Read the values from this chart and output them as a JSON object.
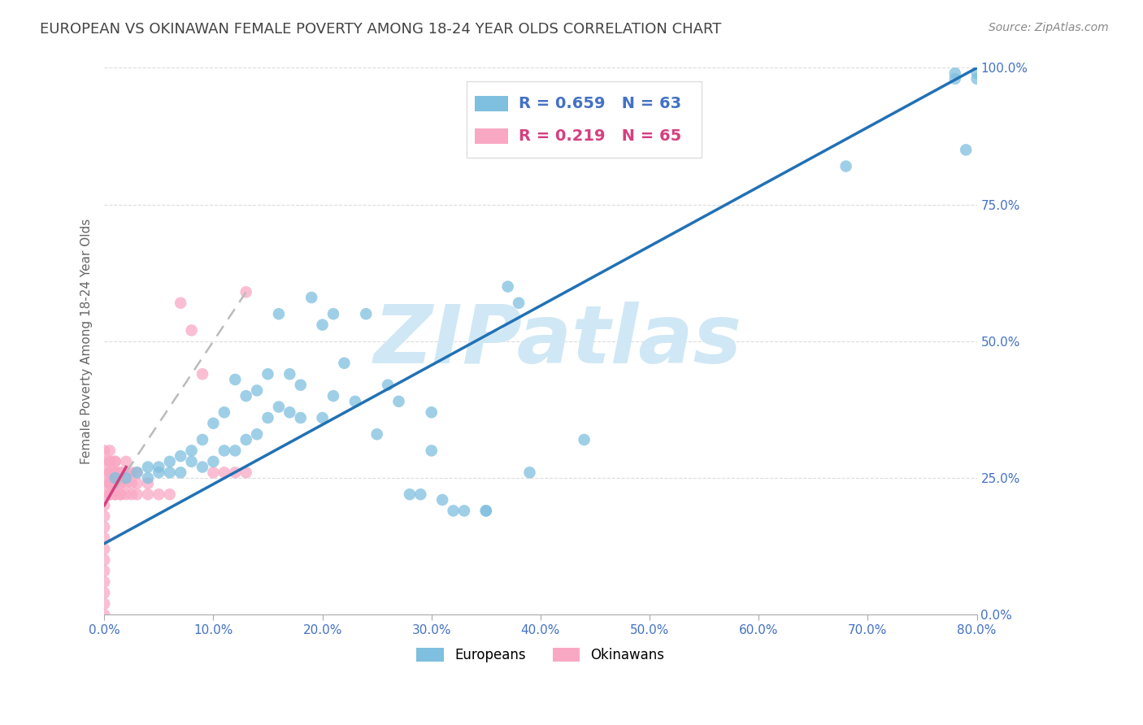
{
  "title": "EUROPEAN VS OKINAWAN FEMALE POVERTY AMONG 18-24 YEAR OLDS CORRELATION CHART",
  "source": "Source: ZipAtlas.com",
  "ylabel": "Female Poverty Among 18-24 Year Olds",
  "xlim": [
    0.0,
    0.8
  ],
  "ylim": [
    0.0,
    1.0
  ],
  "xticks": [
    0.0,
    0.1,
    0.2,
    0.3,
    0.4,
    0.5,
    0.6,
    0.7,
    0.8
  ],
  "yticks": [
    0.0,
    0.25,
    0.5,
    0.75,
    1.0
  ],
  "xticklabels": [
    "0.0%",
    "10.0%",
    "20.0%",
    "30.0%",
    "40.0%",
    "50.0%",
    "60.0%",
    "70.0%",
    "80.0%"
  ],
  "yticklabels": [
    "0.0%",
    "25.0%",
    "50.0%",
    "75.0%",
    "100.0%"
  ],
  "european_R": 0.659,
  "european_N": 63,
  "okinawan_R": 0.219,
  "okinawan_N": 65,
  "european_color": "#7fbfdf",
  "european_line_color": "#2171b5",
  "okinawan_color": "#f9a8c4",
  "okinawan_line_color": "#d44080",
  "watermark": "ZIPatlas",
  "watermark_color": "#d0e8f5",
  "background_color": "#ffffff",
  "title_color": "#444444",
  "axis_color": "#4472c4",
  "grid_color": "#cccccc",
  "eu_line_x0": 0.0,
  "eu_line_x1": 0.8,
  "eu_line_y0": 0.13,
  "eu_line_y1": 1.0,
  "ok_line_x0": 0.0,
  "ok_line_x1": 0.13,
  "ok_line_y0": 0.2,
  "ok_line_y1": 0.59,
  "european_x": [
    0.01,
    0.02,
    0.03,
    0.04,
    0.04,
    0.05,
    0.05,
    0.06,
    0.06,
    0.07,
    0.07,
    0.08,
    0.08,
    0.09,
    0.09,
    0.1,
    0.1,
    0.11,
    0.11,
    0.12,
    0.12,
    0.13,
    0.13,
    0.14,
    0.14,
    0.15,
    0.15,
    0.16,
    0.16,
    0.17,
    0.17,
    0.18,
    0.18,
    0.19,
    0.2,
    0.2,
    0.21,
    0.21,
    0.22,
    0.23,
    0.24,
    0.25,
    0.26,
    0.27,
    0.28,
    0.29,
    0.3,
    0.3,
    0.31,
    0.32,
    0.33,
    0.35,
    0.35,
    0.37,
    0.38,
    0.39,
    0.44,
    0.68,
    0.78,
    0.78,
    0.79,
    0.8,
    0.8
  ],
  "european_y": [
    0.25,
    0.25,
    0.26,
    0.25,
    0.27,
    0.26,
    0.27,
    0.26,
    0.28,
    0.26,
    0.29,
    0.28,
    0.3,
    0.27,
    0.32,
    0.28,
    0.35,
    0.3,
    0.37,
    0.3,
    0.43,
    0.32,
    0.4,
    0.33,
    0.41,
    0.36,
    0.44,
    0.38,
    0.55,
    0.37,
    0.44,
    0.36,
    0.42,
    0.58,
    0.36,
    0.53,
    0.4,
    0.55,
    0.46,
    0.39,
    0.55,
    0.33,
    0.42,
    0.39,
    0.22,
    0.22,
    0.3,
    0.37,
    0.21,
    0.19,
    0.19,
    0.19,
    0.19,
    0.6,
    0.57,
    0.26,
    0.32,
    0.82,
    0.98,
    0.99,
    0.85,
    0.98,
    0.99
  ],
  "okinawan_x": [
    0.0,
    0.0,
    0.0,
    0.0,
    0.0,
    0.0,
    0.0,
    0.0,
    0.0,
    0.0,
    0.0,
    0.0,
    0.0,
    0.0,
    0.0,
    0.0,
    0.005,
    0.005,
    0.005,
    0.005,
    0.005,
    0.005,
    0.005,
    0.005,
    0.005,
    0.005,
    0.005,
    0.01,
    0.01,
    0.01,
    0.01,
    0.01,
    0.01,
    0.01,
    0.01,
    0.01,
    0.01,
    0.015,
    0.015,
    0.015,
    0.015,
    0.015,
    0.015,
    0.02,
    0.02,
    0.02,
    0.02,
    0.025,
    0.025,
    0.025,
    0.03,
    0.03,
    0.03,
    0.04,
    0.04,
    0.05,
    0.06,
    0.07,
    0.08,
    0.09,
    0.1,
    0.11,
    0.12,
    0.13,
    0.13
  ],
  "okinawan_y": [
    0.0,
    0.02,
    0.04,
    0.06,
    0.08,
    0.1,
    0.12,
    0.14,
    0.16,
    0.18,
    0.2,
    0.22,
    0.24,
    0.26,
    0.28,
    0.3,
    0.22,
    0.24,
    0.26,
    0.28,
    0.3,
    0.22,
    0.24,
    0.26,
    0.28,
    0.22,
    0.24,
    0.22,
    0.24,
    0.26,
    0.28,
    0.24,
    0.26,
    0.22,
    0.24,
    0.26,
    0.28,
    0.22,
    0.24,
    0.26,
    0.22,
    0.24,
    0.26,
    0.22,
    0.24,
    0.26,
    0.28,
    0.22,
    0.24,
    0.26,
    0.22,
    0.24,
    0.26,
    0.22,
    0.24,
    0.22,
    0.22,
    0.57,
    0.52,
    0.44,
    0.26,
    0.26,
    0.26,
    0.26,
    0.59
  ]
}
